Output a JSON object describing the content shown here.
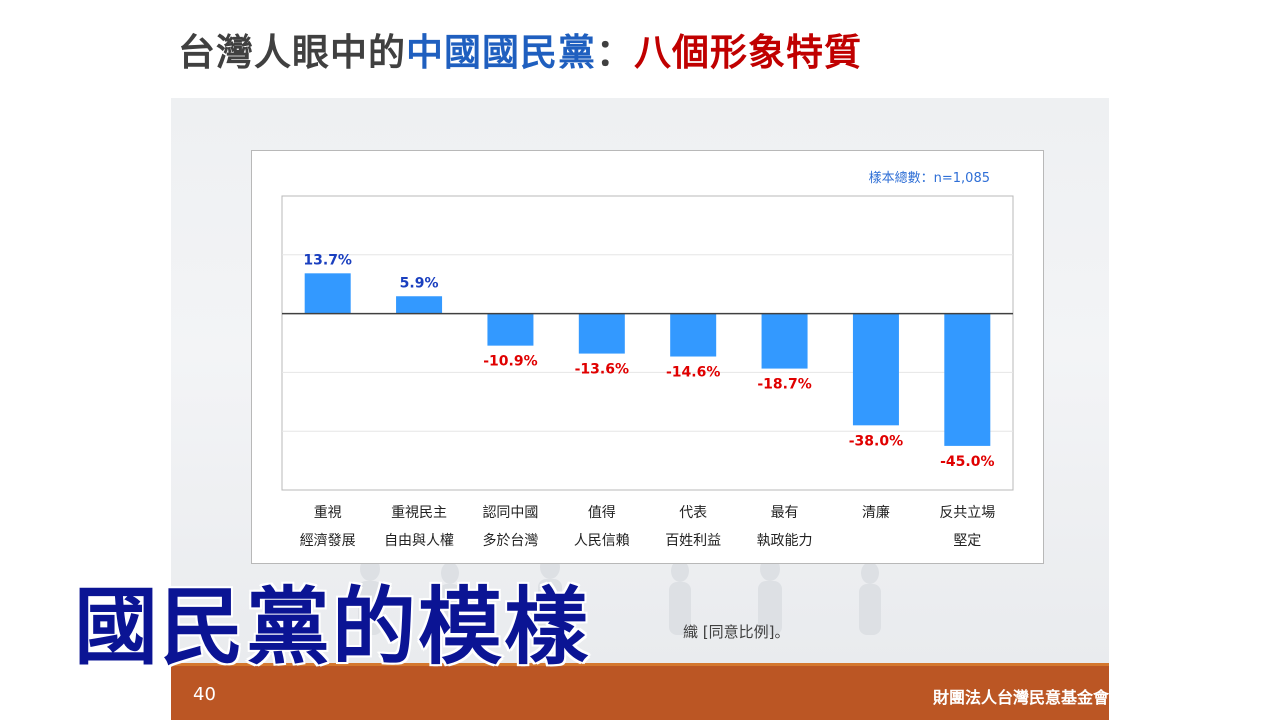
{
  "slide_title": {
    "part1": "台灣人眼中的",
    "part2": "中國國民黨",
    "part3": "：",
    "part4": "八個形象特質"
  },
  "colors": {
    "bar": "#3399ff",
    "positive_label": "#1a3fbf",
    "negative_label": "#e00000",
    "sample_text": "#2f6fd6",
    "footer_bar": "#bb5624",
    "caption": "#0b1494"
  },
  "chart_data": {
    "type": "bar",
    "sample_note": "樣本總數：n=1,085",
    "categories": [
      [
        "重視",
        "經濟發展"
      ],
      [
        "重視民主",
        "自由與人權"
      ],
      [
        "認同中國",
        "多於台灣"
      ],
      [
        "值得",
        "人民信賴"
      ],
      [
        "代表",
        "百姓利益"
      ],
      [
        "最有",
        "執政能力"
      ],
      [
        "清廉",
        ""
      ],
      [
        "反共立場",
        "堅定"
      ]
    ],
    "values": [
      13.7,
      5.9,
      -10.9,
      -13.6,
      -14.6,
      -18.7,
      -38.0,
      -45.0
    ],
    "value_labels": [
      "13.7%",
      "5.9%",
      "-10.9%",
      "-13.6%",
      "-14.6%",
      "-18.7%",
      "-38.0%",
      "-45.0%"
    ],
    "ylim": [
      -60,
      40
    ],
    "grid": true
  },
  "notes": {
    "line1": "※",
    "line2": "※",
    "line2_tail": "織 [同意比例]。"
  },
  "caption": "國民黨的模樣",
  "footer": {
    "page_number": "40",
    "org": "財團法人台灣民意基金會"
  }
}
